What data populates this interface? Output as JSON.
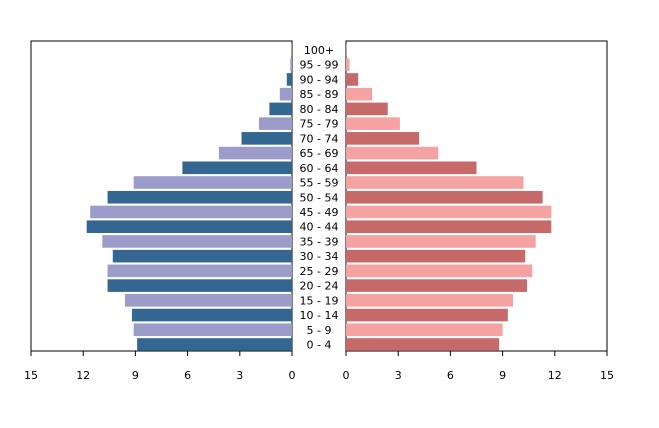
{
  "chart_data": {
    "type": "bar",
    "orientation": "horizontal",
    "title": "",
    "grid": false,
    "categories": [
      "0 - 4",
      "5 - 9",
      "10 - 14",
      "15 - 19",
      "20 - 24",
      "25 - 29",
      "30 - 34",
      "35 - 39",
      "40 - 44",
      "45 - 49",
      "50 - 54",
      "55 - 59",
      "60 - 64",
      "65 - 69",
      "70 - 74",
      "75 - 79",
      "80 - 84",
      "85 - 89",
      "90 - 94",
      "95 - 99",
      "100+"
    ],
    "series": [
      {
        "side": "left",
        "colors": [
          "#336691",
          "#9c9cca"
        ],
        "values": [
          8.9,
          9.1,
          9.2,
          9.6,
          10.6,
          10.6,
          10.3,
          10.9,
          11.8,
          11.6,
          10.6,
          9.1,
          6.3,
          4.2,
          2.9,
          1.9,
          1.3,
          0.7,
          0.3,
          0.1,
          0.02
        ]
      },
      {
        "side": "right",
        "colors": [
          "#c66969",
          "#f5a2a2"
        ],
        "values": [
          8.8,
          9.0,
          9.3,
          9.6,
          10.4,
          10.7,
          10.3,
          10.9,
          11.8,
          11.8,
          11.3,
          10.2,
          7.5,
          5.3,
          4.2,
          3.1,
          2.4,
          1.5,
          0.7,
          0.2,
          0.02
        ]
      }
    ],
    "xlim": [
      0,
      15
    ],
    "left_ticks": [
      "15",
      "12",
      "9",
      "6",
      "3",
      "0"
    ],
    "right_ticks": [
      "0",
      "3",
      "6",
      "9",
      "12",
      "15"
    ],
    "tick_values": [
      0,
      3,
      6,
      9,
      12,
      15
    ]
  }
}
